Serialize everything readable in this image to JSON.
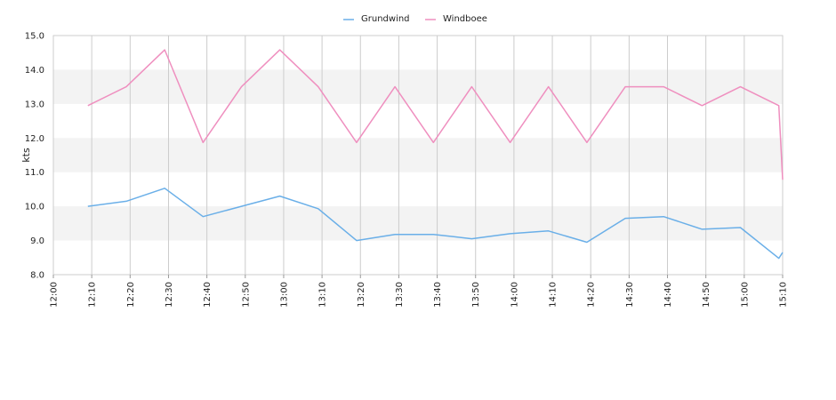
{
  "chart_data": {
    "type": "line",
    "ylabel": "kts",
    "ylim": [
      8.0,
      15.0
    ],
    "y_ticks": [
      "8.0",
      "9.0",
      "10.0",
      "11.0",
      "12.0",
      "13.0",
      "14.0",
      "15.0"
    ],
    "x_range": [
      "12:00",
      "15:10"
    ],
    "x_ticks": [
      "12:00",
      "12:10",
      "12:20",
      "12:30",
      "12:40",
      "12:50",
      "13:00",
      "13:10",
      "13:20",
      "13:30",
      "13:40",
      "13:50",
      "14:00",
      "14:10",
      "14:20",
      "14:30",
      "14:40",
      "14:50",
      "15:00",
      "15:10"
    ],
    "legend_position": "top-center",
    "grid": "vertical lines and alternating horizontal bands",
    "band_color": "#f3f3f3",
    "series": [
      {
        "name": "Grundwind",
        "color": "#6aafe8",
        "points": [
          [
            "12:09",
            10.0
          ],
          [
            "12:19",
            10.15
          ],
          [
            "12:29",
            10.53
          ],
          [
            "12:39",
            9.7
          ],
          [
            "12:49",
            10.0
          ],
          [
            "12:59",
            10.3
          ],
          [
            "13:09",
            9.93
          ],
          [
            "13:19",
            9.0
          ],
          [
            "13:29",
            9.18
          ],
          [
            "13:39",
            9.18
          ],
          [
            "13:49",
            9.05
          ],
          [
            "13:59",
            9.2
          ],
          [
            "14:09",
            9.28
          ],
          [
            "14:19",
            8.95
          ],
          [
            "14:29",
            9.65
          ],
          [
            "14:39",
            9.7
          ],
          [
            "14:49",
            9.33
          ],
          [
            "14:59",
            9.38
          ],
          [
            "15:09",
            8.48
          ],
          [
            "15:10",
            8.65
          ]
        ]
      },
      {
        "name": "Windboee",
        "color": "#ef8fbf",
        "points": [
          [
            "12:09",
            12.95
          ],
          [
            "12:19",
            13.5
          ],
          [
            "12:29",
            14.58
          ],
          [
            "12:39",
            11.87
          ],
          [
            "12:49",
            13.5
          ],
          [
            "12:59",
            14.58
          ],
          [
            "13:09",
            13.5
          ],
          [
            "13:19",
            11.87
          ],
          [
            "13:29",
            13.5
          ],
          [
            "13:39",
            11.87
          ],
          [
            "13:49",
            13.5
          ],
          [
            "13:59",
            11.87
          ],
          [
            "14:09",
            13.5
          ],
          [
            "14:19",
            11.87
          ],
          [
            "14:29",
            13.5
          ],
          [
            "14:39",
            13.5
          ],
          [
            "14:49",
            12.95
          ],
          [
            "14:59",
            13.5
          ],
          [
            "15:09",
            12.95
          ],
          [
            "15:10",
            10.78
          ]
        ]
      }
    ]
  }
}
